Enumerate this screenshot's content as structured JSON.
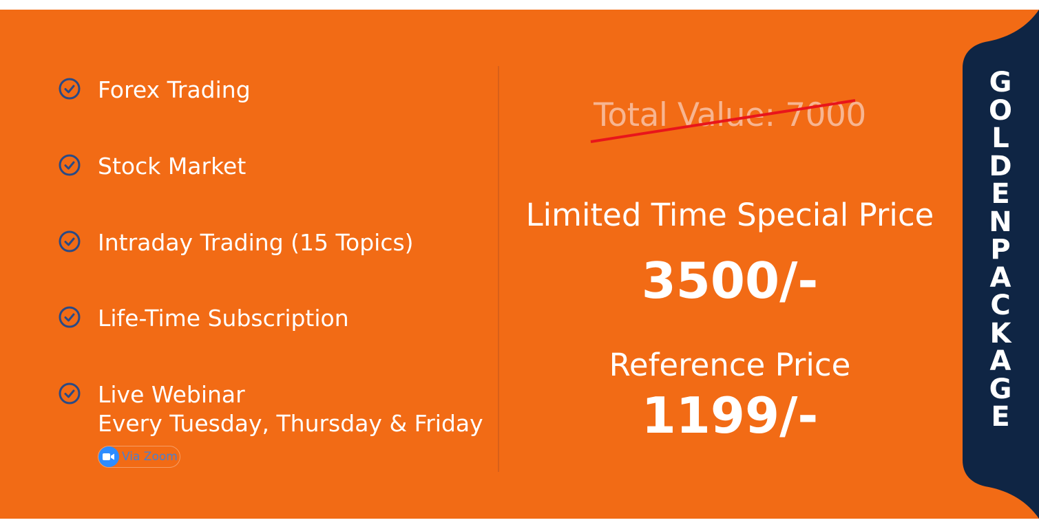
{
  "colors": {
    "banner": "#f26b15",
    "ribbon": "#0f2544",
    "check": "#2a4a86",
    "strike": "#e8151b"
  },
  "features": [
    {
      "icon": "check-circle-icon",
      "lines": [
        "Forex Trading"
      ]
    },
    {
      "icon": "check-circle-icon",
      "lines": [
        "Stock Market"
      ]
    },
    {
      "icon": "check-circle-icon",
      "lines": [
        "Intraday Trading (15 Topics)"
      ]
    },
    {
      "icon": "check-circle-icon",
      "lines": [
        "Life-Time Subscription"
      ]
    },
    {
      "icon": "check-circle-icon",
      "lines": [
        "Live Webinar",
        "Every Tuesday, Thursday & Friday"
      ]
    }
  ],
  "zoom": {
    "icon": "video-camera-icon",
    "label": "Via Zoom"
  },
  "pricing": {
    "total_value": "Total Value: 7000",
    "special_label": "Limited Time Special Price",
    "special_price": "3500/-",
    "reference_label": "Reference Price",
    "reference_price": "1199/-"
  },
  "ribbon": {
    "letters": [
      "G",
      "O",
      "L",
      "D",
      "E",
      "N",
      "P",
      "A",
      "C",
      "K",
      "A",
      "G",
      "E"
    ]
  }
}
